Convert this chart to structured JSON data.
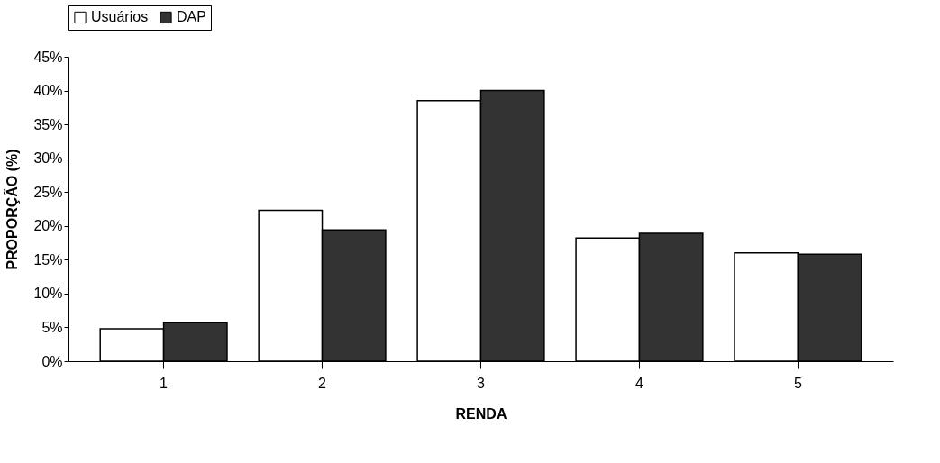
{
  "chart_data": {
    "type": "bar",
    "xlabel": "RENDA",
    "ylabel": "PROPORÇÃO (%)",
    "categories": [
      "1",
      "2",
      "3",
      "4",
      "5"
    ],
    "series": [
      {
        "name": "Usuários",
        "color": "#ffffff",
        "values": [
          4.8,
          22.3,
          38.5,
          18.2,
          16.0
        ]
      },
      {
        "name": "DAP",
        "color": "#333333",
        "values": [
          5.7,
          19.4,
          40.0,
          18.9,
          15.8
        ]
      }
    ],
    "ylim": [
      0,
      45
    ],
    "yticks": [
      {
        "value": 0,
        "label": "0%"
      },
      {
        "value": 5,
        "label": "5%"
      },
      {
        "value": 10,
        "label": "10%"
      },
      {
        "value": 15,
        "label": "15%"
      },
      {
        "value": 20,
        "label": "20%"
      },
      {
        "value": 25,
        "label": "25%"
      },
      {
        "value": 30,
        "label": "30%"
      },
      {
        "value": 35,
        "label": "35%"
      },
      {
        "value": 40,
        "label": "40%"
      },
      {
        "value": 45,
        "label": "45%"
      }
    ],
    "legend": "top",
    "grid": false
  }
}
